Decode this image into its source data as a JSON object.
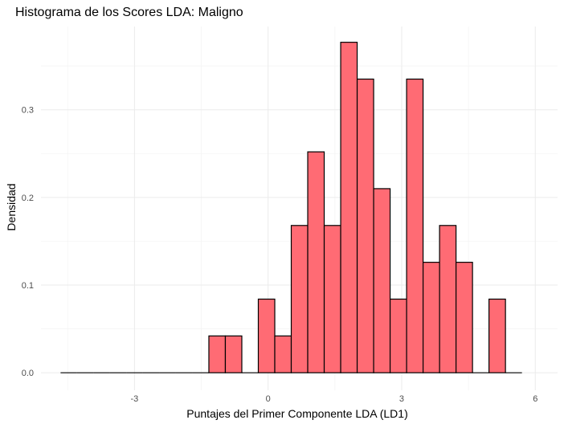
{
  "chart_data": {
    "type": "bar",
    "title": "Histograma de los Scores LDA: Maligno",
    "xlabel": "Puntajes del Primer Componente LDA (LD1)",
    "ylabel": "Densidad",
    "fill_color": "#ff6b74",
    "stroke_color": "#000000",
    "xlim": [
      -5.1,
      6.5
    ],
    "ylim": [
      -0.02,
      0.395
    ],
    "x_ticks": [
      -3,
      0,
      3,
      6
    ],
    "x_tick_labels": [
      "-3",
      "0",
      "3",
      "6"
    ],
    "y_ticks": [
      0.0,
      0.1,
      0.2,
      0.3
    ],
    "y_tick_labels": [
      "0.0",
      "0.1",
      "0.2",
      "0.3"
    ],
    "grid": true,
    "bin_width": 0.37,
    "bins": [
      {
        "start": -4.66,
        "value": 0.0
      },
      {
        "start": -4.29,
        "value": 0.0
      },
      {
        "start": -3.92,
        "value": 0.0
      },
      {
        "start": -3.55,
        "value": 0.0
      },
      {
        "start": -3.18,
        "value": 0.0
      },
      {
        "start": -2.81,
        "value": 0.0
      },
      {
        "start": -2.44,
        "value": 0.0
      },
      {
        "start": -2.07,
        "value": 0.0
      },
      {
        "start": -1.7,
        "value": 0.0
      },
      {
        "start": -1.33,
        "value": 0.042
      },
      {
        "start": -0.96,
        "value": 0.042
      },
      {
        "start": -0.59,
        "value": 0.0
      },
      {
        "start": -0.22,
        "value": 0.084
      },
      {
        "start": 0.15,
        "value": 0.042
      },
      {
        "start": 0.52,
        "value": 0.168
      },
      {
        "start": 0.89,
        "value": 0.252
      },
      {
        "start": 1.26,
        "value": 0.168
      },
      {
        "start": 1.63,
        "value": 0.377
      },
      {
        "start": 2.0,
        "value": 0.335
      },
      {
        "start": 2.37,
        "value": 0.21
      },
      {
        "start": 2.74,
        "value": 0.084
      },
      {
        "start": 3.11,
        "value": 0.335
      },
      {
        "start": 3.48,
        "value": 0.126
      },
      {
        "start": 3.85,
        "value": 0.168
      },
      {
        "start": 4.22,
        "value": 0.126
      },
      {
        "start": 4.59,
        "value": 0.0
      },
      {
        "start": 4.96,
        "value": 0.084
      },
      {
        "start": 5.33,
        "value": 0.0
      }
    ]
  }
}
